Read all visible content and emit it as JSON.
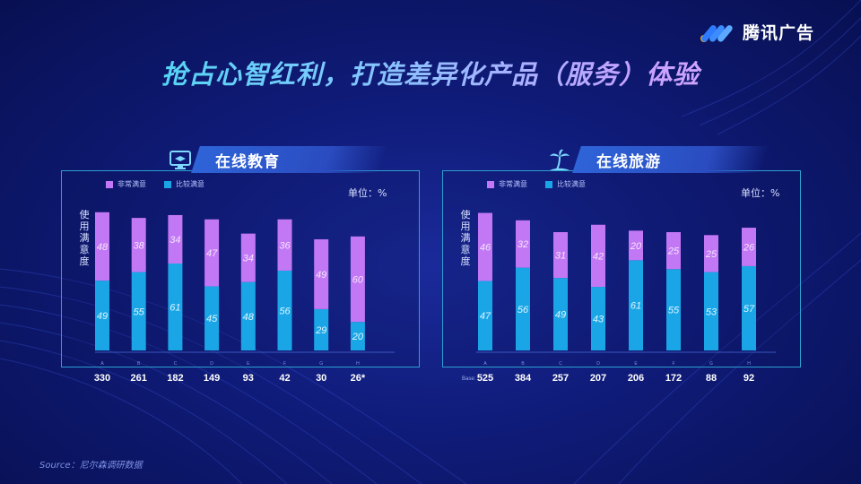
{
  "brand": {
    "name": "腾讯广告",
    "logo_icon": "tencent-ads-logo"
  },
  "title": "抢占心智红利，打造差异化产品（服务）体验",
  "source": "Source：尼尔森调研数据",
  "colors": {
    "very_satisfied": "#c277f4",
    "satisfied": "#1aa6e6",
    "frame": "#2b9fd0"
  },
  "legend": {
    "very_satisfied": "非常满意",
    "satisfied": "比较满意"
  },
  "unit": "单位：%",
  "ylabel": "使用满意度",
  "panels": [
    {
      "title": "在线教育",
      "icon": "monitor-graduation-icon"
    },
    {
      "title": "在线旅游",
      "icon": "palm-tree-icon"
    }
  ],
  "chart_data": [
    {
      "type": "bar",
      "stacked": true,
      "title": "在线教育",
      "ylabel": "使用满意度",
      "unit": "%",
      "categories": [
        "A",
        "B",
        "C",
        "D",
        "E",
        "F",
        "G",
        "H"
      ],
      "series": [
        {
          "name": "比较满意",
          "values": [
            49,
            55,
            61,
            45,
            48,
            56,
            29,
            20
          ]
        },
        {
          "name": "非常满意",
          "values": [
            48,
            38,
            34,
            47,
            34,
            36,
            49,
            60
          ]
        }
      ],
      "base_label": "",
      "base": [
        "330",
        "261",
        "182",
        "149",
        "93",
        "42",
        "30",
        "26*"
      ],
      "ylim": [
        0,
        100
      ],
      "legend_position": "top-left",
      "grid": false
    },
    {
      "type": "bar",
      "stacked": true,
      "title": "在线旅游",
      "ylabel": "使用满意度",
      "unit": "%",
      "categories": [
        "A",
        "B",
        "C",
        "D",
        "E",
        "F",
        "G",
        "H"
      ],
      "series": [
        {
          "name": "比较满意",
          "values": [
            47,
            56,
            49,
            43,
            61,
            55,
            53,
            57
          ]
        },
        {
          "name": "非常满意",
          "values": [
            46,
            32,
            31,
            42,
            20,
            25,
            25,
            26
          ]
        }
      ],
      "base_label": "Base:",
      "base": [
        "525",
        "384",
        "257",
        "207",
        "206",
        "172",
        "88",
        "92"
      ],
      "ylim": [
        0,
        100
      ],
      "legend_position": "top-left",
      "grid": false
    }
  ]
}
